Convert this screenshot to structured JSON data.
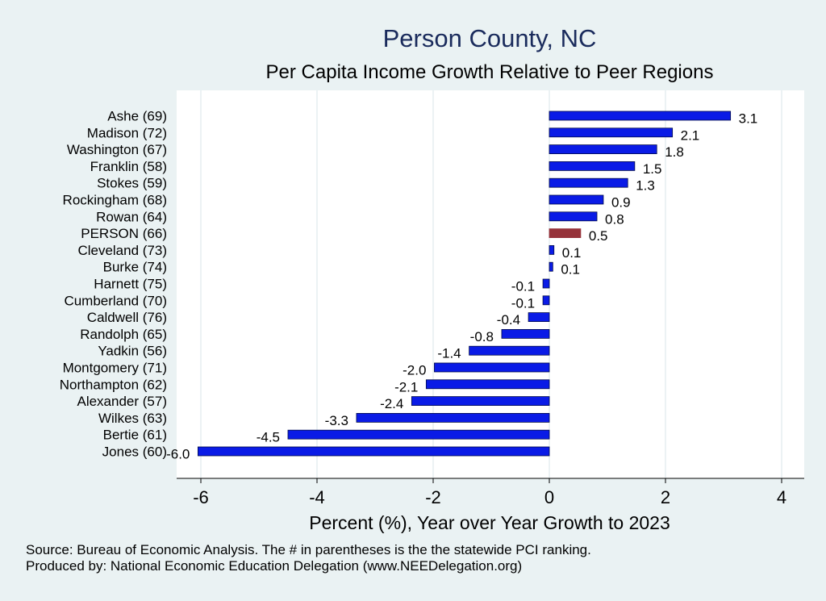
{
  "title": "Person County, NC",
  "subtitle": "Per Capita Income Growth Relative to Peer Regions",
  "notes": {
    "source": "Source: Bureau of Economic Analysis. The # in parentheses is the the statewide PCI ranking.",
    "produced_by": "Produced by: National Economic Education Delegation (www.NEEDelegation.org)"
  },
  "colors": {
    "background": "#eaf2f3",
    "plot_background": "#ffffff",
    "bar": "#0a1be6",
    "highlight_bar": "#96323a",
    "title": "#1a2b5c",
    "grid": "#e6eef0"
  },
  "chart_data": {
    "type": "bar",
    "orientation": "horizontal",
    "categories": [
      "Ashe (69)",
      "Madison (72)",
      "Washington (67)",
      "Franklin (58)",
      "Stokes (59)",
      "Rockingham (68)",
      "Rowan (64)",
      "PERSON (66)",
      "Cleveland (73)",
      "Burke (74)",
      "Harnett (75)",
      "Cumberland (70)",
      "Caldwell (76)",
      "Randolph (65)",
      "Yadkin (56)",
      "Montgomery (71)",
      "Northampton (62)",
      "Alexander (57)",
      "Wilkes (63)",
      "Bertie (61)",
      "Jones (60)"
    ],
    "values": [
      3.12,
      2.12,
      1.85,
      1.47,
      1.35,
      0.93,
      0.82,
      0.54,
      0.08,
      0.06,
      -0.11,
      -0.11,
      -0.36,
      -0.82,
      -1.38,
      -1.98,
      -2.12,
      -2.37,
      -3.32,
      -4.5,
      -6.05
    ],
    "data_labels": [
      "3.1",
      "2.1",
      "1.8",
      "1.5",
      "1.3",
      "0.9",
      "0.8",
      "0.5",
      "0.1",
      "0.1",
      "-0.1",
      "-0.1",
      "-0.4",
      "-0.8",
      "-1.4",
      "-2.0",
      "-2.1",
      "-2.4",
      "-3.3",
      "-4.5",
      "-6.0"
    ],
    "highlight": "PERSON (66)",
    "title": "Person County, NC",
    "subtitle": "Per Capita Income Growth Relative to Peer Regions",
    "xlabel": "Percent (%), Year over Year Growth to 2023",
    "ylabel": "",
    "xlim": [
      -6.5,
      4.4
    ],
    "xticks": [
      -6,
      -4,
      -2,
      0,
      2,
      4
    ],
    "xtick_labels": [
      "-6",
      "-4",
      "-2",
      "0",
      "2",
      "4"
    ],
    "grid": "vertical",
    "legend": "none"
  }
}
